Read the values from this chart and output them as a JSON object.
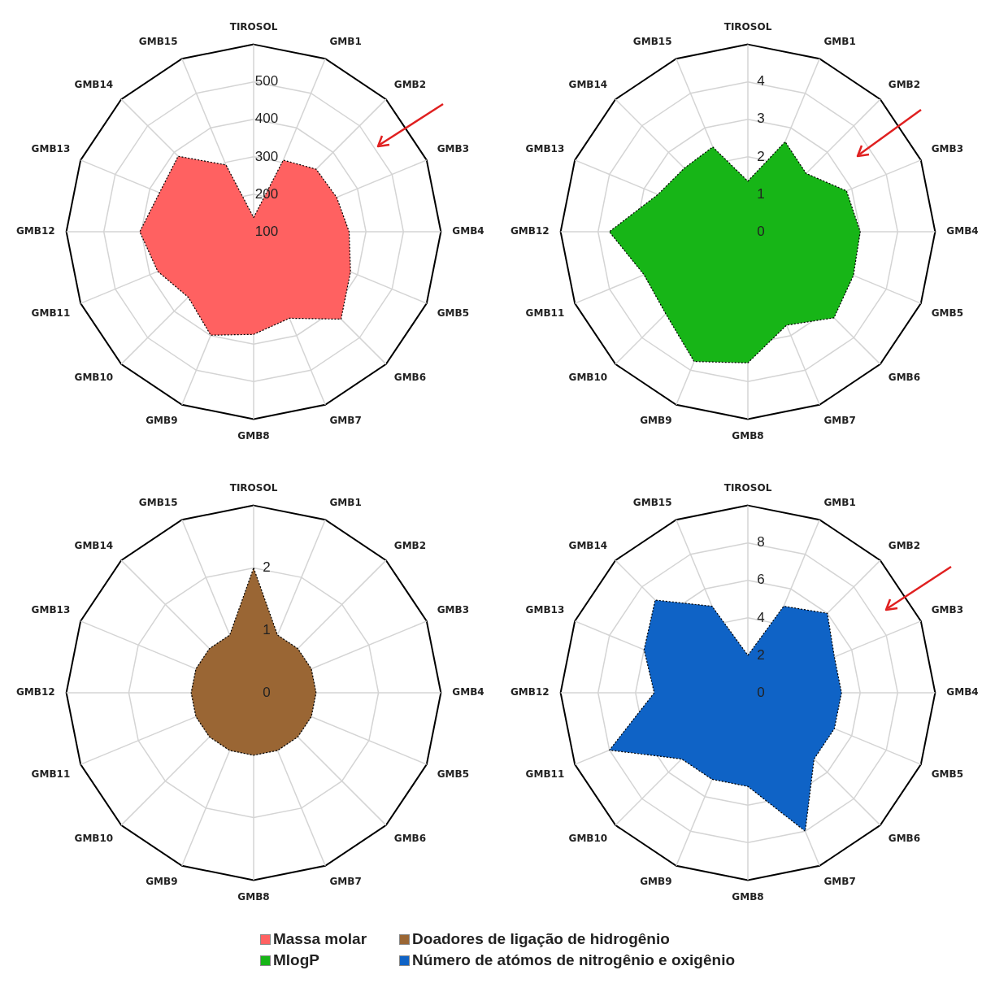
{
  "chart_data": [
    {
      "type": "radar",
      "categories": [
        "TIROSOL",
        "GMB1",
        "GMB2",
        "GMB3",
        "GMB4",
        "GMB5",
        "GMB6",
        "GMB7",
        "GMB8",
        "GMB9",
        "GMB10",
        "GMB11",
        "GMB12",
        "GMB13",
        "GMB14",
        "GMB15"
      ],
      "series": [
        {
          "name": "Massa molar",
          "color": "#ff6161",
          "values": [
            138,
            307,
            336,
            340,
            355,
            380,
            430,
            350,
            374,
            399,
            347,
            377,
            404,
            372,
            385,
            293
          ]
        }
      ],
      "ylim": [
        100,
        600
      ],
      "yticks": [
        100,
        200,
        300,
        400,
        500
      ],
      "grid": true,
      "legend": "bottom",
      "marker": "none",
      "line_style": "dotted"
    },
    {
      "type": "radar",
      "categories": [
        "TIROSOL",
        "GMB1",
        "GMB2",
        "GMB3",
        "GMB4",
        "GMB5",
        "GMB6",
        "GMB7",
        "GMB8",
        "GMB9",
        "GMB10",
        "GMB11",
        "GMB12",
        "GMB13",
        "GMB14",
        "GMB15"
      ],
      "series": [
        {
          "name": "MlogP",
          "color": "#17b517",
          "values": [
            1.35,
            2.6,
            2.2,
            2.85,
            3.0,
            3.05,
            3.25,
            2.7,
            3.5,
            3.75,
            3.1,
            3.0,
            3.7,
            2.6,
            2.4,
            2.45
          ]
        }
      ],
      "ylim": [
        0,
        5
      ],
      "yticks": [
        0,
        1,
        2,
        3,
        4
      ],
      "grid": true,
      "legend": "bottom",
      "marker": "none",
      "line_style": "dotted"
    },
    {
      "type": "radar",
      "categories": [
        "TIROSOL",
        "GMB1",
        "GMB2",
        "GMB3",
        "GMB4",
        "GMB5",
        "GMB6",
        "GMB7",
        "GMB8",
        "GMB9",
        "GMB10",
        "GMB11",
        "GMB12",
        "GMB13",
        "GMB14",
        "GMB15"
      ],
      "series": [
        {
          "name": "Doadores de ligação de hidrogênio",
          "color": "#9a6634",
          "values": [
            2,
            1,
            1,
            1,
            1,
            1,
            1,
            1,
            1,
            1,
            1,
            1,
            1,
            1,
            1,
            1
          ]
        }
      ],
      "ylim": [
        0,
        3
      ],
      "yticks": [
        0,
        1,
        2
      ],
      "grid": true,
      "legend": "bottom",
      "marker": "none",
      "line_style": "dotted"
    },
    {
      "type": "radar",
      "categories": [
        "TIROSOL",
        "GMB1",
        "GMB2",
        "GMB3",
        "GMB4",
        "GMB5",
        "GMB6",
        "GMB7",
        "GMB8",
        "GMB9",
        "GMB10",
        "GMB11",
        "GMB12",
        "GMB13",
        "GMB14",
        "GMB15"
      ],
      "series": [
        {
          "name": "Número de atómos de nitrogênio e oxigênio",
          "color": "#0f63c6",
          "values": [
            2,
            5,
            6,
            5,
            5,
            5,
            5,
            8,
            5,
            5,
            5,
            8,
            5,
            6,
            7,
            5
          ]
        }
      ],
      "ylim": [
        0,
        10
      ],
      "yticks": [
        0,
        2,
        4,
        6,
        8
      ],
      "grid": true,
      "legend": "bottom",
      "marker": "none",
      "line_style": "dotted"
    }
  ]
}
